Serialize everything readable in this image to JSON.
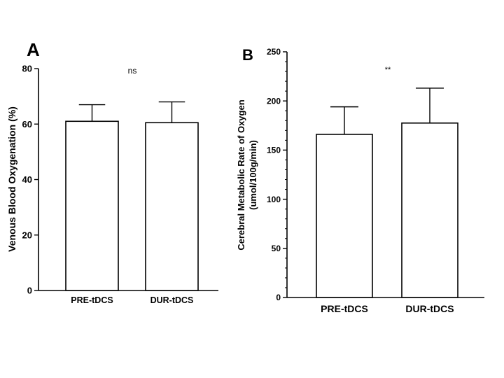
{
  "chart_data": [
    {
      "panel": "A",
      "type": "bar",
      "categories": [
        "PRE-tDCS",
        "DUR-tDCS"
      ],
      "values": [
        61,
        60.5
      ],
      "error_plus": [
        6,
        7.5
      ],
      "ylabel": "Venous Blood Oxygenation (%)",
      "ylim": [
        0,
        80
      ],
      "yticks": [
        0,
        20,
        40,
        60,
        80
      ],
      "minor_ticks_per_major": 0,
      "significance": "ns"
    },
    {
      "panel": "B",
      "type": "bar",
      "categories": [
        "PRE-tDCS",
        "DUR-tDCS"
      ],
      "values": [
        166,
        177.5
      ],
      "error_plus": [
        28,
        35.5
      ],
      "ylabel_lines": [
        "Cerebral Metabolic Rate of Oxygen",
        "(umol/100g/min)"
      ],
      "ylim": [
        0,
        250
      ],
      "yticks": [
        0,
        50,
        100,
        150,
        200,
        250
      ],
      "minor_ticks_per_major": 5,
      "significance": "**"
    }
  ]
}
